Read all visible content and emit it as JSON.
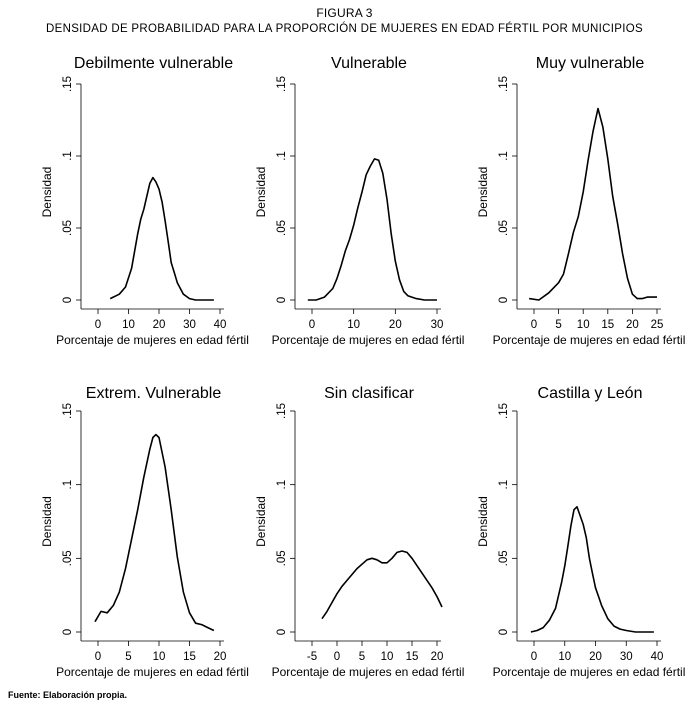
{
  "figure": {
    "title": "FIGURA 3",
    "subtitle": "DENSIDAD DE PROBABILIDAD PARA LA PROPORCIÓN DE MUJERES EN EDAD FÉRTIL POR MUNICIPIOS",
    "source": "Fuente: Elaboración propia."
  },
  "chart_data": [
    {
      "type": "line",
      "title": "Debilmente vulnerable",
      "xlabel": "Porcentaje de mujeres en edad fértil",
      "ylabel": "Densidad",
      "xlim": [
        0,
        40
      ],
      "ylim": [
        0,
        0.15
      ],
      "xticks": [
        0,
        10,
        20,
        30,
        40
      ],
      "xtick_labels": [
        "0",
        "10",
        "20",
        "30",
        "40"
      ],
      "yticks": [
        0,
        0.05,
        0.1,
        0.15
      ],
      "ytick_labels": [
        "0",
        ".05",
        ".1",
        ".15"
      ],
      "grid": false,
      "series": [
        {
          "x": [
            4,
            7,
            9,
            11,
            13,
            14,
            15,
            16,
            17,
            18,
            19,
            20,
            21,
            22,
            23,
            24,
            25,
            26,
            28,
            30,
            32,
            34,
            36,
            38
          ],
          "y": [
            0.001,
            0.004,
            0.009,
            0.022,
            0.046,
            0.056,
            0.063,
            0.072,
            0.081,
            0.085,
            0.082,
            0.077,
            0.068,
            0.055,
            0.041,
            0.026,
            0.019,
            0.012,
            0.004,
            0.001,
            0.0,
            0.0,
            0.0,
            0.0
          ]
        }
      ]
    },
    {
      "type": "line",
      "title": "Vulnerable",
      "xlabel": "Porcentaje de mujeres en edad fértil",
      "ylabel": "Densidad",
      "xlim": [
        0,
        30
      ],
      "ylim": [
        0,
        0.15
      ],
      "xticks": [
        0,
        10,
        20,
        30
      ],
      "xtick_labels": [
        "0",
        "10",
        "20",
        "30"
      ],
      "yticks": [
        0,
        0.05,
        0.1,
        0.15
      ],
      "ytick_labels": [
        "0",
        ".05",
        ".1",
        ".15"
      ],
      "grid": false,
      "series": [
        {
          "x": [
            -1,
            1,
            3,
            5,
            6,
            7,
            8,
            9,
            10,
            11,
            12,
            13,
            14,
            15,
            16,
            17,
            18,
            19,
            20,
            21,
            22,
            23,
            25,
            27,
            29,
            30
          ],
          "y": [
            0.0,
            0.0,
            0.002,
            0.008,
            0.015,
            0.024,
            0.034,
            0.042,
            0.052,
            0.064,
            0.075,
            0.087,
            0.093,
            0.098,
            0.097,
            0.088,
            0.07,
            0.046,
            0.027,
            0.014,
            0.006,
            0.003,
            0.001,
            0.0,
            0.0,
            0.0
          ]
        }
      ]
    },
    {
      "type": "line",
      "title": "Muy vulnerable",
      "xlabel": "Porcentaje de mujeres en edad fértil",
      "ylabel": "Densidad",
      "xlim": [
        0,
        25
      ],
      "ylim": [
        0,
        0.15
      ],
      "xticks": [
        0,
        5,
        10,
        15,
        20,
        25
      ],
      "xtick_labels": [
        "0",
        "5",
        "10",
        "15",
        "20",
        "25"
      ],
      "yticks": [
        0,
        0.05,
        0.1,
        0.15
      ],
      "ytick_labels": [
        "0",
        ".05",
        ".1",
        ".15"
      ],
      "grid": false,
      "series": [
        {
          "x": [
            -1,
            1,
            3,
            5,
            6,
            7,
            8,
            9,
            10,
            11,
            12,
            13,
            14,
            15,
            16,
            17,
            18,
            19,
            20,
            21,
            22,
            23,
            24,
            25
          ],
          "y": [
            0.001,
            0.0,
            0.005,
            0.012,
            0.018,
            0.032,
            0.047,
            0.058,
            0.075,
            0.097,
            0.117,
            0.133,
            0.12,
            0.098,
            0.072,
            0.053,
            0.032,
            0.015,
            0.004,
            0.001,
            0.001,
            0.002,
            0.002,
            0.002
          ]
        }
      ]
    },
    {
      "type": "line",
      "title": "Extrem. Vulnerable",
      "xlabel": "Porcentaje de mujeres en edad fértil",
      "ylabel": "Densidad",
      "xlim": [
        0,
        20
      ],
      "ylim": [
        0,
        0.15
      ],
      "xticks": [
        0,
        5,
        10,
        15,
        20
      ],
      "xtick_labels": [
        "0",
        "5",
        "10",
        "15",
        "20"
      ],
      "yticks": [
        0,
        0.05,
        0.1,
        0.15
      ],
      "ytick_labels": [
        "0",
        ".05",
        ".1",
        ".15"
      ],
      "grid": false,
      "series": [
        {
          "x": [
            -0.5,
            0.5,
            1.5,
            2.5,
            3.5,
            4.5,
            5.5,
            6.5,
            7.5,
            8.5,
            9.0,
            9.5,
            10.0,
            11.0,
            12.0,
            13.0,
            14.0,
            15.0,
            16.0,
            17.0,
            18.0,
            19.0
          ],
          "y": [
            0.007,
            0.014,
            0.013,
            0.018,
            0.027,
            0.043,
            0.063,
            0.083,
            0.105,
            0.124,
            0.132,
            0.134,
            0.132,
            0.112,
            0.083,
            0.051,
            0.027,
            0.013,
            0.006,
            0.005,
            0.003,
            0.001
          ]
        }
      ]
    },
    {
      "type": "line",
      "title": "Sin clasificar",
      "xlabel": "Porcentaje de mujeres en edad fértil",
      "ylabel": "Densidad",
      "xlim": [
        -5,
        20
      ],
      "ylim": [
        0,
        0.15
      ],
      "xticks": [
        -5,
        0,
        5,
        10,
        15,
        20
      ],
      "xtick_labels": [
        "-5",
        "0",
        "5",
        "10",
        "15",
        "20"
      ],
      "yticks": [
        0,
        0.05,
        0.1,
        0.15
      ],
      "ytick_labels": [
        "0",
        ".05",
        ".1",
        ".15"
      ],
      "grid": false,
      "series": [
        {
          "x": [
            -3,
            -2,
            -1,
            0,
            1,
            2,
            3,
            4,
            5,
            6,
            7,
            8,
            9,
            10,
            11,
            12,
            13,
            14,
            15,
            16,
            17,
            18,
            19,
            20,
            21
          ],
          "y": [
            0.009,
            0.014,
            0.02,
            0.026,
            0.031,
            0.035,
            0.039,
            0.043,
            0.046,
            0.049,
            0.05,
            0.049,
            0.047,
            0.047,
            0.05,
            0.054,
            0.055,
            0.054,
            0.05,
            0.045,
            0.04,
            0.035,
            0.03,
            0.024,
            0.017
          ]
        }
      ]
    },
    {
      "type": "line",
      "title": "Castilla y León",
      "xlabel": "Porcentaje de mujeres en edad fértil",
      "ylabel": "Densidad",
      "xlim": [
        0,
        40
      ],
      "ylim": [
        0,
        0.15
      ],
      "xticks": [
        0,
        10,
        20,
        30,
        40
      ],
      "xtick_labels": [
        "0",
        "10",
        "20",
        "30",
        "40"
      ],
      "yticks": [
        0,
        0.05,
        0.1,
        0.15
      ],
      "ytick_labels": [
        "0",
        ".05",
        ".1",
        ".15"
      ],
      "grid": false,
      "series": [
        {
          "x": [
            -1,
            1,
            3,
            5,
            7,
            9,
            10,
            11,
            12,
            13,
            14,
            15,
            16,
            17,
            18,
            19,
            20,
            21,
            22,
            24,
            26,
            28,
            30,
            33,
            36,
            39
          ],
          "y": [
            0.0,
            0.001,
            0.003,
            0.008,
            0.016,
            0.034,
            0.045,
            0.058,
            0.072,
            0.083,
            0.085,
            0.079,
            0.073,
            0.064,
            0.05,
            0.04,
            0.03,
            0.024,
            0.018,
            0.009,
            0.004,
            0.002,
            0.001,
            0.0,
            0.0,
            0.0
          ]
        }
      ]
    }
  ]
}
